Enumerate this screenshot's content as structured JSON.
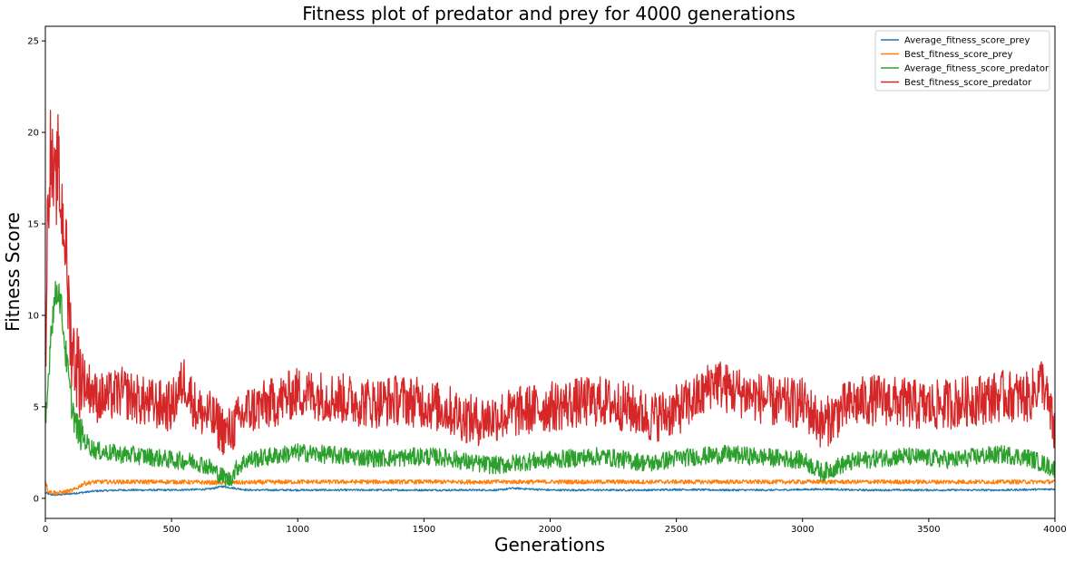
{
  "chart_data": {
    "type": "line",
    "title": "Fitness plot of predator and prey for 4000 generations",
    "xlabel": "Generations",
    "ylabel": "Fitness Score",
    "xlim": [
      0,
      4000
    ],
    "ylim": [
      -1.1,
      25.8
    ],
    "xticks": [
      0,
      500,
      1000,
      1500,
      2000,
      2500,
      3000,
      3500,
      4000
    ],
    "yticks": [
      0,
      5,
      10,
      15,
      20,
      25
    ],
    "grid": false,
    "legend_position": "top-right",
    "series": [
      {
        "name": "Average_fitness_score_prey",
        "color": "#1f77b4",
        "x": [
          0,
          20,
          40,
          60,
          80,
          100,
          150,
          200,
          300,
          400,
          500,
          600,
          650,
          700,
          750,
          800,
          1000,
          1200,
          1400,
          1600,
          1800,
          1850,
          2000,
          2200,
          2400,
          2500,
          2700,
          2900,
          3000,
          3100,
          3200,
          3400,
          3600,
          3800,
          4000
        ],
        "values": [
          0.3,
          0.2,
          0.18,
          0.2,
          0.22,
          0.25,
          0.32,
          0.4,
          0.45,
          0.45,
          0.45,
          0.48,
          0.5,
          0.65,
          0.55,
          0.45,
          0.45,
          0.45,
          0.45,
          0.45,
          0.45,
          0.55,
          0.45,
          0.45,
          0.45,
          0.48,
          0.45,
          0.45,
          0.48,
          0.5,
          0.45,
          0.45,
          0.45,
          0.45,
          0.5
        ]
      },
      {
        "name": "Best_fitness_score_prey",
        "color": "#ff7f0e",
        "x": [
          0,
          10,
          20,
          40,
          60,
          80,
          100,
          120,
          150,
          200,
          300,
          500,
          700,
          1000,
          1500,
          2000,
          2500,
          3000,
          3500,
          4000
        ],
        "values": [
          1.0,
          0.4,
          0.35,
          0.3,
          0.3,
          0.35,
          0.4,
          0.5,
          0.8,
          0.9,
          0.9,
          0.9,
          0.85,
          0.9,
          0.9,
          0.9,
          0.9,
          0.9,
          0.9,
          0.9
        ]
      },
      {
        "name": "Average_fitness_score_predator",
        "color": "#2ca02c",
        "x": [
          0,
          10,
          20,
          30,
          40,
          50,
          60,
          70,
          80,
          90,
          100,
          110,
          120,
          140,
          160,
          180,
          200,
          250,
          300,
          400,
          500,
          600,
          650,
          700,
          730,
          760,
          800,
          900,
          1000,
          1100,
          1200,
          1300,
          1400,
          1500,
          1600,
          1700,
          1800,
          1900,
          2000,
          2100,
          2200,
          2300,
          2400,
          2500,
          2600,
          2700,
          2800,
          2900,
          3000,
          3080,
          3150,
          3200,
          3300,
          3400,
          3500,
          3600,
          3700,
          3800,
          3900,
          4000
        ],
        "values": [
          3.7,
          6.0,
          8.8,
          10.2,
          11.0,
          11.5,
          10.8,
          9.5,
          8.0,
          6.8,
          5.5,
          4.8,
          4.0,
          3.5,
          3.1,
          2.8,
          2.6,
          2.5,
          2.4,
          2.3,
          2.1,
          2.0,
          1.7,
          1.2,
          1.0,
          1.7,
          2.1,
          2.3,
          2.5,
          2.4,
          2.3,
          2.2,
          2.2,
          2.3,
          2.2,
          1.9,
          1.8,
          2.0,
          2.1,
          2.2,
          2.3,
          2.1,
          1.9,
          2.2,
          2.3,
          2.4,
          2.3,
          2.2,
          2.1,
          1.4,
          1.8,
          2.0,
          2.2,
          2.3,
          2.2,
          2.1,
          2.3,
          2.4,
          2.2,
          1.6
        ]
      },
      {
        "name": "Best_fitness_score_predator",
        "color": "#d62728",
        "x": [
          0,
          10,
          20,
          30,
          40,
          50,
          60,
          70,
          80,
          90,
          100,
          110,
          120,
          130,
          140,
          160,
          180,
          200,
          250,
          300,
          400,
          500,
          550,
          600,
          650,
          700,
          720,
          750,
          800,
          900,
          1000,
          1100,
          1200,
          1300,
          1400,
          1500,
          1600,
          1700,
          1800,
          1900,
          2000,
          2100,
          2200,
          2300,
          2400,
          2500,
          2600,
          2650,
          2700,
          2800,
          2900,
          3000,
          3080,
          3150,
          3200,
          3300,
          3400,
          3500,
          3600,
          3700,
          3800,
          3900,
          3950,
          4000
        ],
        "values": [
          8.0,
          16.0,
          19.0,
          17.5,
          16.5,
          18.5,
          16.0,
          15.5,
          14.0,
          11.0,
          9.0,
          8.0,
          7.5,
          7.0,
          6.8,
          6.2,
          6.0,
          5.5,
          5.5,
          5.8,
          5.2,
          5.0,
          6.5,
          4.8,
          4.5,
          3.8,
          3.5,
          4.0,
          4.8,
          5.2,
          5.8,
          5.6,
          5.4,
          5.2,
          5.4,
          5.2,
          4.8,
          4.2,
          4.5,
          4.8,
          5.0,
          5.2,
          5.3,
          5.0,
          4.4,
          4.8,
          5.6,
          6.5,
          6.0,
          5.6,
          5.2,
          5.2,
          4.0,
          4.8,
          5.2,
          5.4,
          5.2,
          5.0,
          5.2,
          5.4,
          5.6,
          5.5,
          6.5,
          3.5
        ]
      }
    ]
  }
}
